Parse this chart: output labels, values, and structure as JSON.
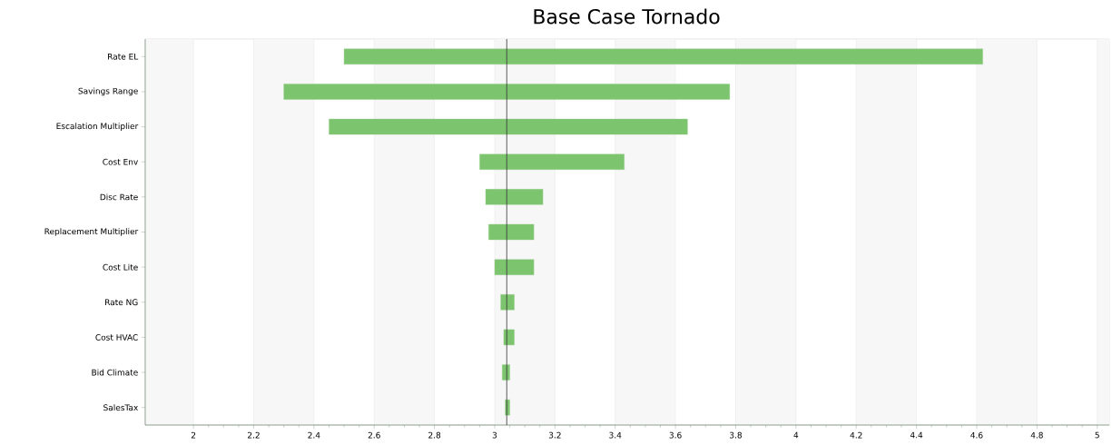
{
  "chart_data": {
    "type": "bar",
    "title": "Base Case Tornado",
    "orientation": "horizontal",
    "color": "#7dc46f",
    "grid": "x",
    "categories": [
      "Rate EL",
      "Savings Range",
      "Escalation Multiplier",
      "Cost Env",
      "Disc Rate",
      "Replacement Multiplier",
      "Cost Lite",
      "Rate NG",
      "Cost HVAC",
      "Bid Climate",
      "SalesTax"
    ],
    "base": [
      2.5,
      2.3,
      2.45,
      2.95,
      2.97,
      2.98,
      3.0,
      3.02,
      3.03,
      3.025,
      3.035
    ],
    "values": [
      2.12,
      1.48,
      1.19,
      0.48,
      0.19,
      0.15,
      0.13,
      0.045,
      0.035,
      0.025,
      0.015
    ],
    "xlim": [
      1.84,
      5.04
    ],
    "xticks": [
      2,
      2.2,
      2.4,
      2.6,
      2.8,
      3,
      3.2,
      3.4,
      3.6,
      3.8,
      4,
      4.2,
      4.4,
      4.6,
      4.8,
      5
    ],
    "ref_lines": [
      {
        "axis": "x",
        "value": 3.04,
        "color": "#333333"
      }
    ]
  }
}
